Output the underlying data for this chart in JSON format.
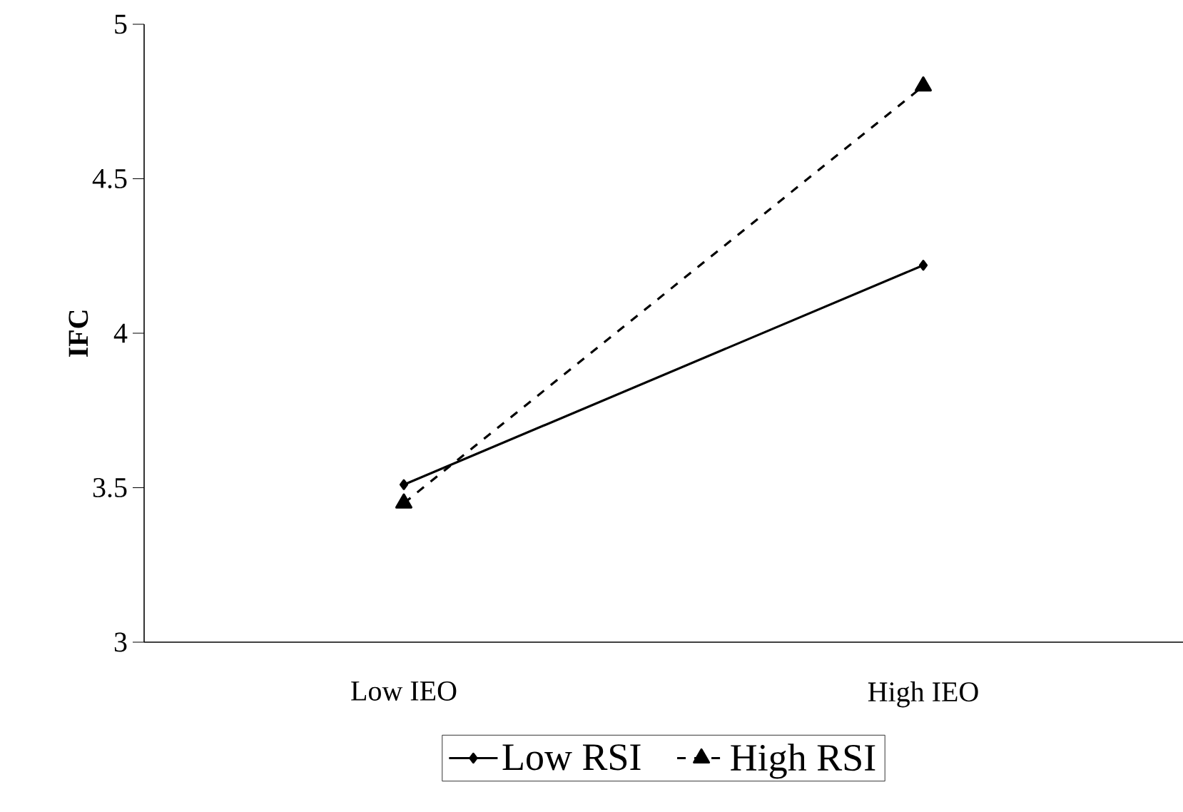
{
  "chart_data": {
    "type": "line",
    "ylabel": "IFC",
    "categories": [
      "Low IEO",
      "High IEO"
    ],
    "series": [
      {
        "name": "Low RSI",
        "color": "#000000",
        "values": [
          3.51,
          4.22
        ],
        "marker": "diamond",
        "line_style": "solid"
      },
      {
        "name": "High RSI",
        "color": "#000000",
        "values": [
          3.45,
          4.8
        ],
        "marker": "triangle",
        "line_style": "dashed"
      }
    ],
    "ylim": [
      3,
      5
    ],
    "yticks": [
      3,
      3.5,
      4,
      4.5,
      5
    ],
    "grid": false,
    "legend": "bottom"
  }
}
